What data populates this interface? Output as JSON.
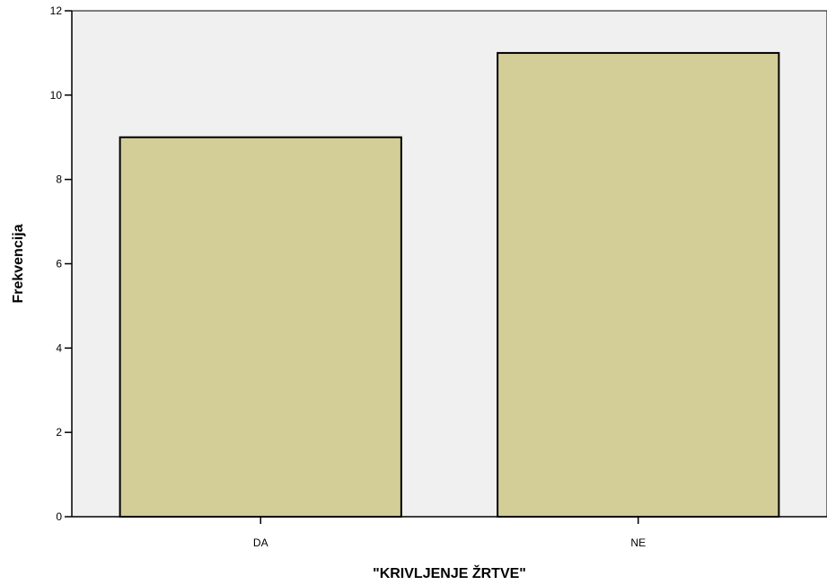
{
  "chart_data": {
    "type": "bar",
    "title": "",
    "xlabel": "\"KRIVLJENJE ŽRTVE\"",
    "ylabel": "Frekvencija",
    "categories": [
      "DA",
      "NE"
    ],
    "values": [
      9,
      11
    ],
    "ylim": [
      0,
      12
    ],
    "yticks": [
      "0",
      "2",
      "4",
      "6",
      "8",
      "10",
      "12"
    ],
    "grid": false,
    "legend": "none",
    "colors": {
      "plot_background": "#f0f0f0",
      "bar_fill": "#d3ce98",
      "bar_stroke": "#000000",
      "axis": "#000000"
    }
  }
}
